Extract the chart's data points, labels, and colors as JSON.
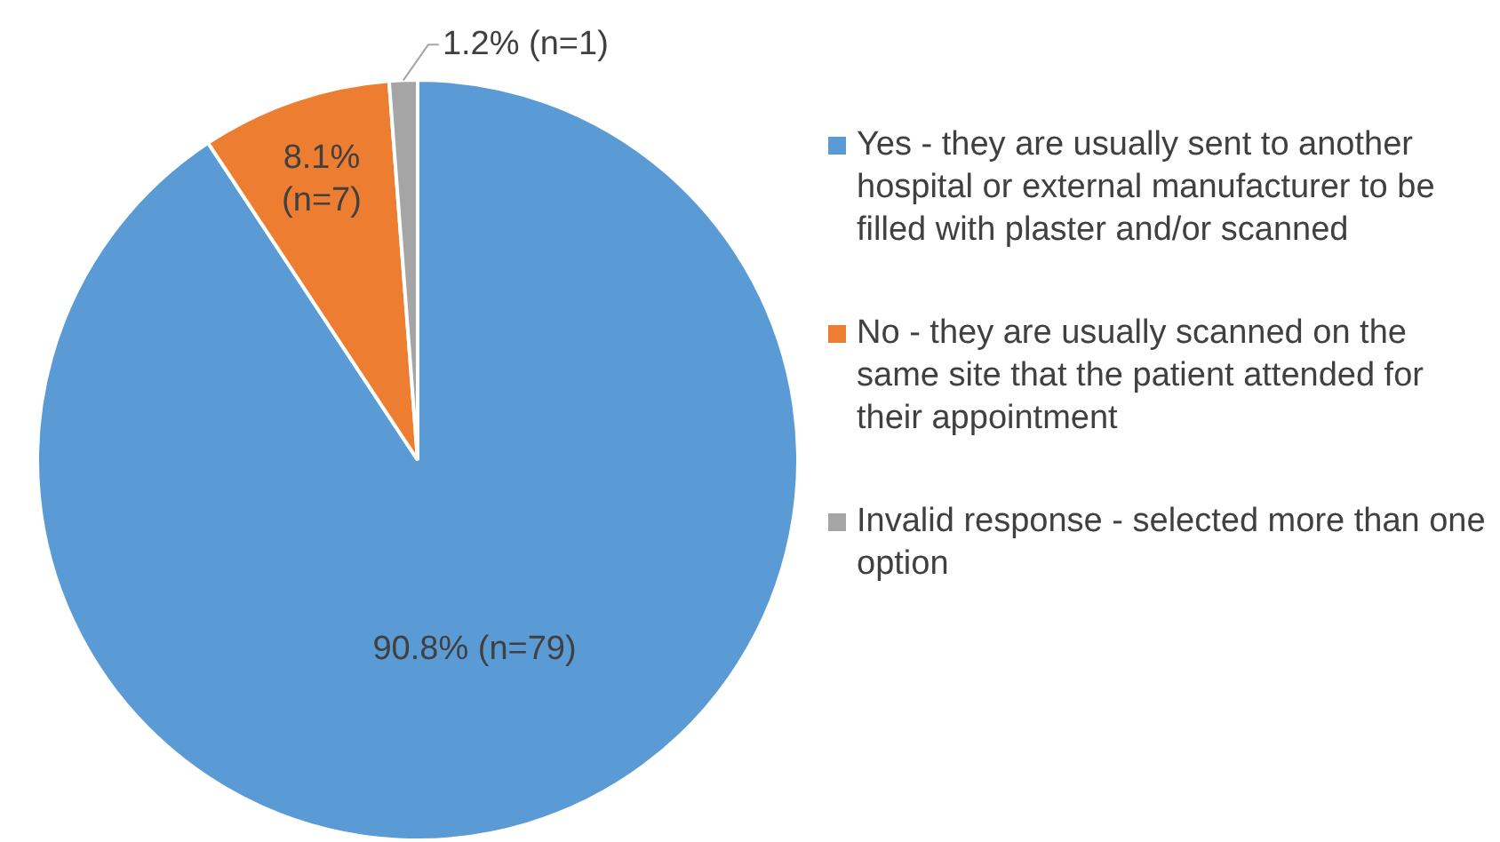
{
  "chart_data": {
    "type": "pie",
    "categories": [
      "Yes - they are usually sent to another hospital or external manufacturer to be filled with plaster and/or scanned",
      "No - they are usually scanned on the same site that the patient attended for their appointment",
      "Invalid response - selected more than one option"
    ],
    "values": [
      90.8,
      8.1,
      1.2
    ],
    "colors": [
      "#5b9bd5",
      "#ed7d31",
      "#a5a5a5"
    ],
    "value_labels": [
      "90.8% (n=79)",
      "8.1% (n=7)",
      "1.2% (n=1)"
    ],
    "legend": "right"
  }
}
